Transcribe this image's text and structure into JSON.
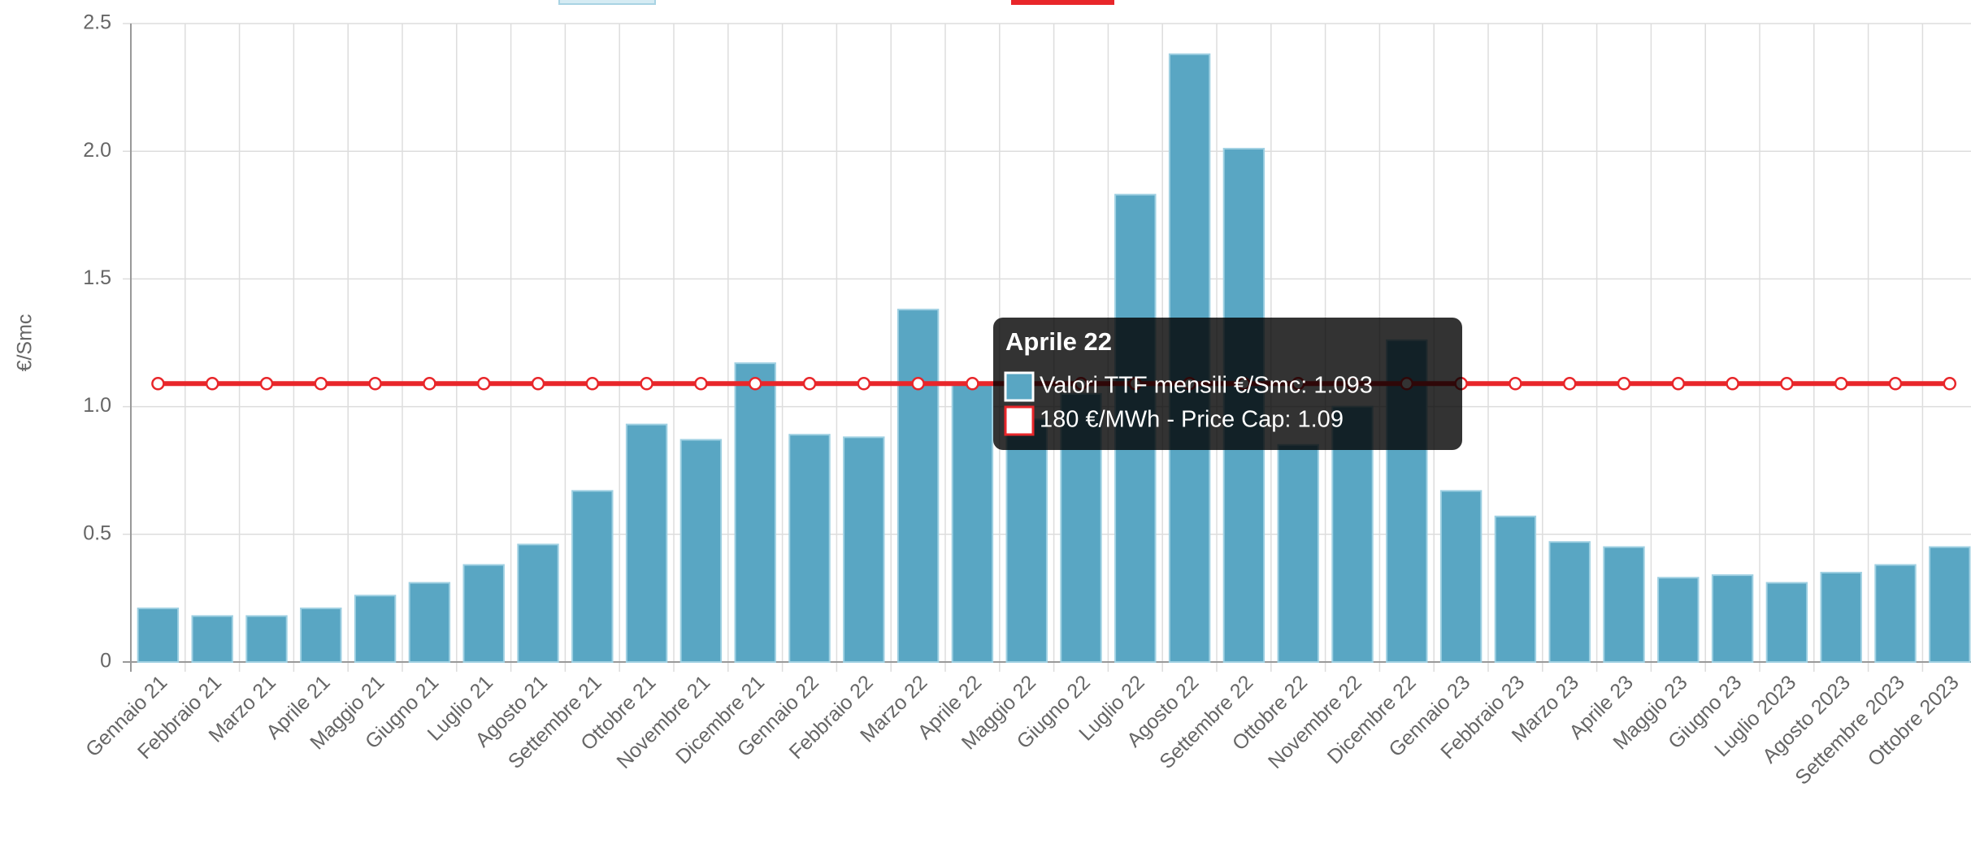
{
  "chart_data": {
    "type": "bar",
    "y_label": "€/Smc",
    "categories": [
      "Gennaio 21",
      "Febbraio 21",
      "Marzo 21",
      "Aprile 21",
      "Maggio 21",
      "Giugno 21",
      "Luglio 21",
      "Agosto 21",
      "Settembre 21",
      "Ottobre 21",
      "Novembre 21",
      "Dicembre 21",
      "Gennaio 22",
      "Febbraio 22",
      "Marzo 22",
      "Aprile 22",
      "Maggio 22",
      "Giugno 22",
      "Luglio 22",
      "Agosto 22",
      "Settembre 22",
      "Ottobre 22",
      "Novembre 22",
      "Dicembre 22",
      "Gennaio 23",
      "Febbraio 23",
      "Marzo 23",
      "Aprile 23",
      "Maggio 23",
      "Giugno 23",
      "Luglio 2023",
      "Agosto 2023",
      "Settembre 2023",
      "Ottobre 2023"
    ],
    "series": [
      {
        "name": "Valori TTF mensili €/Smc",
        "type": "bar",
        "color": "#59a6c3",
        "values": [
          0.21,
          0.18,
          0.18,
          0.21,
          0.26,
          0.31,
          0.38,
          0.46,
          0.67,
          0.93,
          0.87,
          1.17,
          0.89,
          0.88,
          1.38,
          1.093,
          0.95,
          1.05,
          1.83,
          2.38,
          2.01,
          0.85,
          1.0,
          1.26,
          0.67,
          0.57,
          0.47,
          0.45,
          0.33,
          0.34,
          0.31,
          0.35,
          0.38,
          0.45
        ]
      },
      {
        "name": "180 €/MWh - Price Cap",
        "type": "line",
        "color": "#e8262a",
        "values": [
          1.09,
          1.09,
          1.09,
          1.09,
          1.09,
          1.09,
          1.09,
          1.09,
          1.09,
          1.09,
          1.09,
          1.09,
          1.09,
          1.09,
          1.09,
          1.09,
          1.09,
          1.09,
          1.09,
          1.09,
          1.09,
          1.09,
          1.09,
          1.09,
          1.09,
          1.09,
          1.09,
          1.09,
          1.09,
          1.09,
          1.09,
          1.09,
          1.09,
          1.09
        ]
      }
    ],
    "ylim": [
      0,
      2.5
    ],
    "yticks": [
      0,
      0.5,
      {
        "value": 1.0,
        "label": "1.0"
      },
      1.5,
      {
        "value": 2.0,
        "label": "2.0"
      },
      2.5
    ],
    "grid": true,
    "tooltip": {
      "title": "Aprile 22",
      "lines": [
        "Valori TTF mensili €/Smc: 1.093",
        "180 €/MWh - Price Cap: 1.09"
      ]
    }
  }
}
